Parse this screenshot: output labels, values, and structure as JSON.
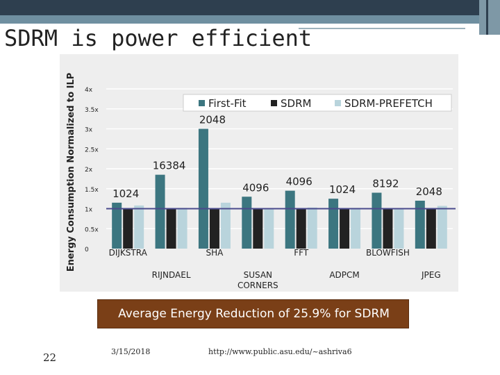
{
  "slide": {
    "title": "SDRM is power efficient",
    "banner": "Average Energy Reduction of 25.9% for SDRM",
    "footer": {
      "page_number": "22",
      "date": "3/15/2018",
      "url": "http://www.public.asu.edu/~ashriva6"
    }
  },
  "colors": {
    "first_fit": "#3c7680",
    "sdrm": "#222222",
    "sdrm_prefetch": "#b9d4dc",
    "baseline": "#4a4a8c",
    "banner": "#7a3f17"
  },
  "chart_data": {
    "type": "bar",
    "ylabel": "Energy Consumption Normalized to ILP",
    "xlabel": "",
    "ylim": [
      0,
      4
    ],
    "yticks": [
      {
        "value": 0,
        "label": "0"
      },
      {
        "value": 0.5,
        "label": "0.5x"
      },
      {
        "value": 1,
        "label": "1x"
      },
      {
        "value": 1.5,
        "label": "1.5x"
      },
      {
        "value": 2,
        "label": "2x"
      },
      {
        "value": 2.5,
        "label": "2.5x"
      },
      {
        "value": 3,
        "label": "3x"
      },
      {
        "value": 3.5,
        "label": "3.5x"
      },
      {
        "value": 4,
        "label": "4x"
      }
    ],
    "grid": true,
    "legend": "top",
    "baseline": 1,
    "categories": [
      "DIJKSTRA",
      "RIJNDAEL",
      "SHA",
      "SUSAN CORNERS",
      "FFT",
      "ADPCM",
      "BLOWFISH",
      "JPEG"
    ],
    "category_lines": [
      [
        "DIJKSTRA"
      ],
      [
        "RIJNDAEL"
      ],
      [
        "SHA"
      ],
      [
        "SUSAN",
        "CORNERS"
      ],
      [
        "FFT"
      ],
      [
        "ADPCM"
      ],
      [
        "BLOWFISH"
      ],
      [
        "JPEG"
      ]
    ],
    "category_row": [
      0,
      1,
      0,
      1,
      0,
      1,
      0,
      1
    ],
    "series": [
      {
        "name": "First-Fit",
        "values": [
          1.15,
          1.85,
          3.0,
          1.3,
          1.45,
          1.25,
          1.4,
          1.2
        ]
      },
      {
        "name": "SDRM",
        "values": [
          1.0,
          1.0,
          1.0,
          1.0,
          1.0,
          1.0,
          1.0,
          1.0
        ]
      },
      {
        "name": "SDRM-PREFETCH",
        "values": [
          1.08,
          1.02,
          1.15,
          1.0,
          1.03,
          1.02,
          1.0,
          1.07
        ]
      }
    ],
    "annotations": [
      "1024",
      "16384",
      "2048",
      "4096",
      "4096",
      "1024",
      "8192",
      "2048"
    ]
  }
}
